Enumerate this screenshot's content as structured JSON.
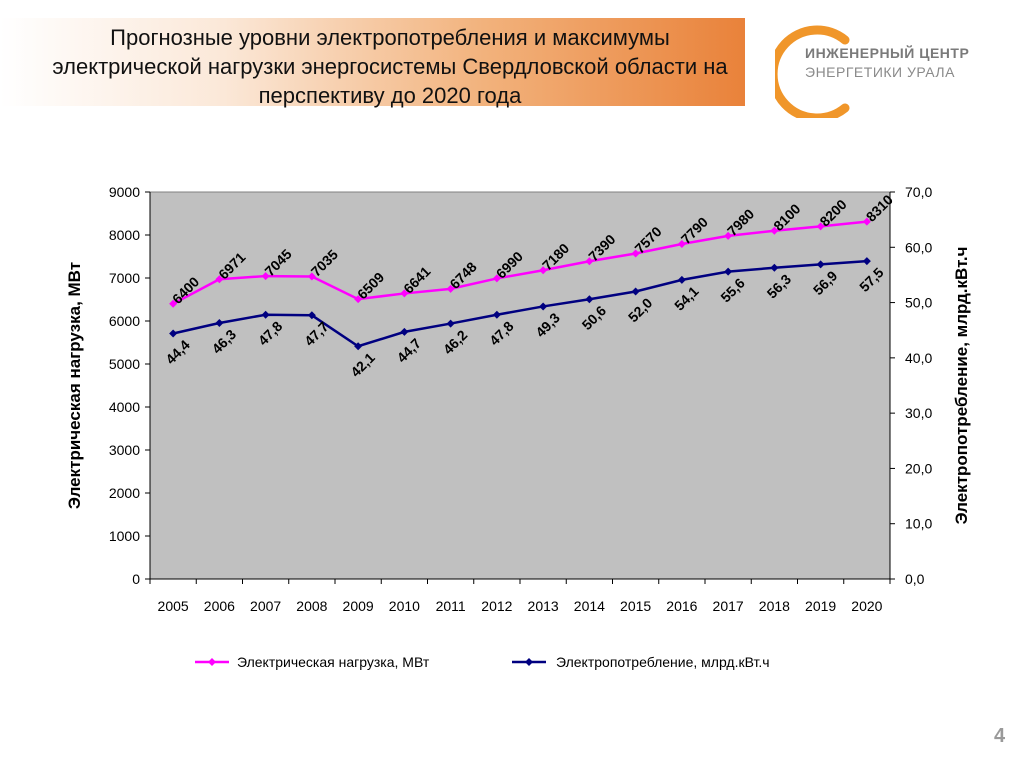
{
  "slide": {
    "title": "Прогнозные уровни электропотребления и максимумы электрической нагрузки энергосистемы Свердловской области на перспективу до 2020 года",
    "page_number": "4",
    "accent_color": "#e9823a"
  },
  "logo": {
    "line1": "ИНЖЕНЕРНЫЙ ЦЕНТР",
    "line2": "ЭНЕРГЕТИКИ   УРАЛА",
    "ring_color": "#f0962a"
  },
  "chart_data": {
    "type": "line",
    "categories": [
      "2005",
      "2006",
      "2007",
      "2008",
      "2009",
      "2010",
      "2011",
      "2012",
      "2013",
      "2014",
      "2015",
      "2016",
      "2017",
      "2018",
      "2019",
      "2020"
    ],
    "y_left": {
      "label": "Электрическая нагрузка, МВт",
      "min": 0,
      "max": 9000,
      "ticks": [
        "0",
        "1000",
        "2000",
        "3000",
        "4000",
        "5000",
        "6000",
        "7000",
        "8000",
        "9000"
      ]
    },
    "y_right": {
      "label": "Электропотребление, млрд.кВт.ч",
      "min": 0,
      "max": 70,
      "ticks": [
        "0,0",
        "10,0",
        "20,0",
        "30,0",
        "40,0",
        "50,0",
        "60,0",
        "70,0"
      ]
    },
    "plot_background": "#c0c0c0",
    "grid": false,
    "legend_position": "bottom",
    "series": [
      {
        "name": "Электрическая нагрузка, МВт",
        "axis": "left",
        "color": "#ff00ff",
        "values": [
          6400,
          6971,
          7045,
          7035,
          6509,
          6641,
          6748,
          6990,
          7180,
          7390,
          7570,
          7790,
          7980,
          8100,
          8200,
          8310
        ],
        "labels": [
          "6400",
          "6971",
          "7045",
          "7035",
          "6509",
          "6641",
          "6748",
          "6990",
          "7180",
          "7390",
          "7570",
          "7790",
          "7980",
          "8100",
          "8200",
          "8310"
        ]
      },
      {
        "name": "Электропотребление, млрд.кВт.ч",
        "axis": "right",
        "color": "#000080",
        "values": [
          44.4,
          46.3,
          47.8,
          47.7,
          42.1,
          44.7,
          46.2,
          47.8,
          49.3,
          50.6,
          52.0,
          54.1,
          55.6,
          56.3,
          56.9,
          57.5
        ],
        "labels": [
          "44,4",
          "46,3",
          "47,8",
          "47,7",
          "42,1",
          "44,7",
          "46,2",
          "47,8",
          "49,3",
          "50,6",
          "52,0",
          "54,1",
          "55,6",
          "56,3",
          "56,9",
          "57,5"
        ]
      }
    ]
  }
}
